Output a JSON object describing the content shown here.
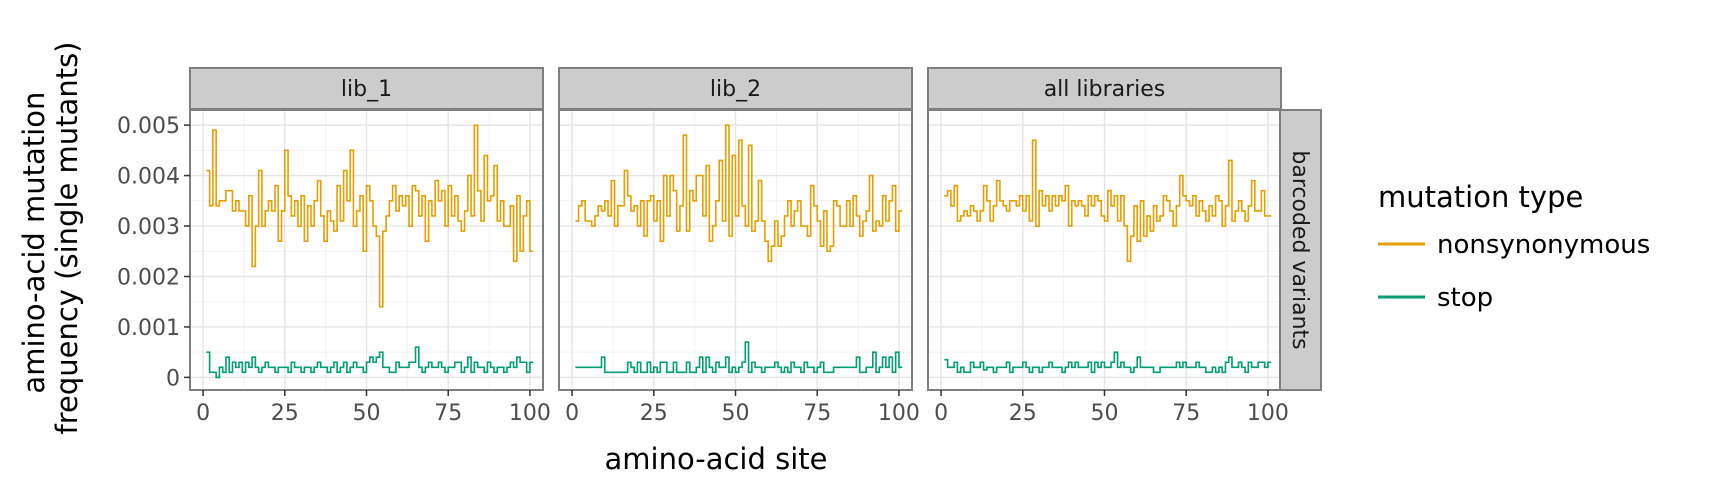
{
  "chart_data": {
    "type": "line",
    "step": true,
    "xlabel": "amino-acid site",
    "ylabel": [
      "amino-acid mutation",
      "frequency (single mutants)"
    ],
    "xlim": [
      -4,
      104
    ],
    "ylim": [
      -0.00025,
      0.0053
    ],
    "x_ticks": [
      0,
      25,
      50,
      75,
      100
    ],
    "x_tick_labels": [
      "0",
      "25",
      "50",
      "75",
      "100"
    ],
    "y_ticks": [
      0,
      0.001,
      0.002,
      0.003,
      0.004,
      0.005
    ],
    "y_tick_labels": [
      "0",
      "0.001",
      "0.002",
      "0.003",
      "0.004",
      "0.005"
    ],
    "grid": true,
    "row_strip": "barcoded variants",
    "legend": {
      "title": "mutation type",
      "position": "right",
      "entries": [
        {
          "label": "nonsynonymous",
          "color": "#E69F00"
        },
        {
          "label": "stop",
          "color": "#009E73"
        }
      ]
    },
    "panels": [
      {
        "name": "lib_1",
        "series": [
          {
            "name": "nonsynonymous",
            "color": "#E69F00",
            "x_start": 1,
            "values": [
              0.0041,
              0.0034,
              0.0049,
              0.0034,
              0.0035,
              0.0035,
              0.0037,
              0.0037,
              0.0033,
              0.0035,
              0.0033,
              0.0033,
              0.003,
              0.0036,
              0.0022,
              0.003,
              0.0041,
              0.003,
              0.0033,
              0.0035,
              0.0033,
              0.0038,
              0.0027,
              0.0033,
              0.0045,
              0.0036,
              0.0032,
              0.0035,
              0.003,
              0.0036,
              0.0027,
              0.0034,
              0.003,
              0.0035,
              0.0039,
              0.0032,
              0.0027,
              0.0033,
              0.0031,
              0.0029,
              0.0038,
              0.0031,
              0.0041,
              0.0035,
              0.0045,
              0.003,
              0.0033,
              0.0036,
              0.0025,
              0.0038,
              0.0035,
              0.003,
              0.0028,
              0.0014,
              0.0029,
              0.0032,
              0.0035,
              0.0038,
              0.0033,
              0.0036,
              0.0034,
              0.0036,
              0.003,
              0.0038,
              0.0037,
              0.0032,
              0.0036,
              0.0027,
              0.0035,
              0.0032,
              0.0039,
              0.0035,
              0.0037,
              0.003,
              0.0038,
              0.0032,
              0.0036,
              0.0031,
              0.0029,
              0.0033,
              0.004,
              0.0032,
              0.005,
              0.0037,
              0.0031,
              0.0044,
              0.0035,
              0.0036,
              0.0042,
              0.0031,
              0.0035,
              0.003,
              0.003,
              0.0034,
              0.0023,
              0.0036,
              0.0025,
              0.0032,
              0.0035,
              0.0025
            ]
          },
          {
            "name": "stop",
            "color": "#009E73",
            "x_start": 1,
            "values": [
              0.0005,
              0.0001,
              0.0001,
              0.0,
              0.0002,
              0.0001,
              0.0004,
              0.0001,
              0.0003,
              0.0002,
              0.0003,
              0.0001,
              0.0003,
              0.0002,
              0.0004,
              0.0002,
              0.0001,
              0.0002,
              0.0003,
              0.0002,
              0.0002,
              0.0001,
              0.0002,
              0.0002,
              0.0002,
              0.0001,
              0.0003,
              0.0002,
              0.0002,
              0.0001,
              0.0002,
              0.0002,
              0.0001,
              0.0002,
              0.0003,
              0.0002,
              0.0002,
              0.0001,
              0.0002,
              0.0003,
              0.0001,
              0.0002,
              0.0003,
              0.0001,
              0.0002,
              0.0003,
              0.0002,
              0.0002,
              0.0001,
              0.0003,
              0.0004,
              0.0003,
              0.0004,
              0.0005,
              0.0002,
              0.0002,
              0.0001,
              0.0001,
              0.0003,
              0.0002,
              0.0002,
              0.0002,
              0.0003,
              0.0003,
              0.0006,
              0.0002,
              0.0001,
              0.0002,
              0.0003,
              0.0002,
              0.0002,
              0.0003,
              0.0002,
              0.0001,
              0.0002,
              0.0002,
              0.0003,
              0.0003,
              0.0001,
              0.0002,
              0.0004,
              0.0001,
              0.0003,
              0.0002,
              0.0002,
              0.0001,
              0.0003,
              0.0002,
              0.0001,
              0.0002,
              0.0002,
              0.0001,
              0.0002,
              0.0003,
              0.0002,
              0.0004,
              0.0003,
              0.0003,
              0.0001,
              0.0003
            ]
          }
        ]
      },
      {
        "name": "lib_2",
        "series": [
          {
            "name": "nonsynonymous",
            "color": "#E69F00",
            "x_start": 1,
            "values": [
              0.0031,
              0.0034,
              0.0035,
              0.0031,
              0.0031,
              0.003,
              0.0032,
              0.0034,
              0.0033,
              0.0035,
              0.0032,
              0.0039,
              0.003,
              0.0034,
              0.0034,
              0.0041,
              0.0036,
              0.0033,
              0.0034,
              0.003,
              0.0035,
              0.0028,
              0.0035,
              0.0036,
              0.0031,
              0.0035,
              0.0027,
              0.004,
              0.0032,
              0.004,
              0.0037,
              0.0029,
              0.0034,
              0.0048,
              0.0029,
              0.0037,
              0.0035,
              0.004,
              0.004,
              0.0032,
              0.0042,
              0.0027,
              0.003,
              0.0035,
              0.0043,
              0.0031,
              0.005,
              0.0028,
              0.0044,
              0.0032,
              0.0047,
              0.0034,
              0.003,
              0.0046,
              0.0029,
              0.0031,
              0.0039,
              0.0031,
              0.0027,
              0.0023,
              0.0026,
              0.0031,
              0.0026,
              0.0028,
              0.0032,
              0.0035,
              0.003,
              0.0033,
              0.0035,
              0.003,
              0.003,
              0.0028,
              0.0038,
              0.0034,
              0.0031,
              0.0026,
              0.0033,
              0.0025,
              0.0026,
              0.0035,
              0.0034,
              0.003,
              0.003,
              0.0035,
              0.003,
              0.0036,
              0.0032,
              0.0028,
              0.0031,
              0.0033,
              0.004,
              0.0029,
              0.0031,
              0.003,
              0.0036,
              0.0031,
              0.0035,
              0.0038,
              0.0029,
              0.0033
            ]
          },
          {
            "name": "stop",
            "color": "#009E73",
            "x_start": 1,
            "values": [
              0.0002,
              0.0002,
              0.0002,
              0.0002,
              0.0002,
              0.0002,
              0.0002,
              0.0002,
              0.0004,
              0.0001,
              0.0001,
              0.0001,
              0.0001,
              0.0001,
              0.0001,
              0.0001,
              0.0003,
              0.0002,
              0.0001,
              0.0003,
              0.0001,
              0.0001,
              0.0003,
              0.0001,
              0.0002,
              0.0001,
              0.0003,
              0.0003,
              0.0001,
              0.0001,
              0.0003,
              0.0001,
              0.0001,
              0.0001,
              0.0003,
              0.0001,
              0.0001,
              0.0002,
              0.0004,
              0.0001,
              0.0004,
              0.0002,
              0.0001,
              0.0003,
              0.0002,
              0.0002,
              0.0004,
              0.0001,
              0.0002,
              0.0001,
              0.0002,
              0.0003,
              0.0007,
              0.0001,
              0.0003,
              0.0002,
              0.0002,
              0.0001,
              0.0002,
              0.0002,
              0.0002,
              0.0003,
              0.0002,
              0.0001,
              0.0002,
              0.0001,
              0.0003,
              0.0002,
              0.0002,
              0.0001,
              0.0003,
              0.0002,
              0.0002,
              0.0001,
              0.0002,
              0.0003,
              0.0001,
              0.0001,
              0.0001,
              0.0002,
              0.0002,
              0.0002,
              0.0002,
              0.0002,
              0.0002,
              0.0002,
              0.0004,
              0.0001,
              0.0001,
              0.0002,
              0.0002,
              0.0005,
              0.0001,
              0.0002,
              0.0004,
              0.0002,
              0.0004,
              0.0001,
              0.0005,
              0.0002
            ]
          }
        ]
      },
      {
        "name": "all libraries",
        "series": [
          {
            "name": "nonsynonymous",
            "color": "#E69F00",
            "x_start": 1,
            "values": [
              0.0036,
              0.0037,
              0.0034,
              0.0038,
              0.0031,
              0.0032,
              0.0033,
              0.0032,
              0.0034,
              0.0033,
              0.0031,
              0.0033,
              0.0038,
              0.0035,
              0.0031,
              0.0034,
              0.0039,
              0.0035,
              0.0034,
              0.0033,
              0.0035,
              0.0035,
              0.0034,
              0.0036,
              0.0033,
              0.0036,
              0.0031,
              0.0047,
              0.003,
              0.0037,
              0.0034,
              0.0036,
              0.0033,
              0.0036,
              0.0034,
              0.0036,
              0.0035,
              0.0038,
              0.003,
              0.0035,
              0.0034,
              0.0035,
              0.0034,
              0.0032,
              0.0036,
              0.0034,
              0.0036,
              0.0035,
              0.0032,
              0.0031,
              0.0037,
              0.0034,
              0.0036,
              0.0031,
              0.0036,
              0.003,
              0.0023,
              0.0028,
              0.0034,
              0.0027,
              0.0035,
              0.0028,
              0.0032,
              0.0029,
              0.0034,
              0.0031,
              0.0032,
              0.0036,
              0.0035,
              0.0033,
              0.003,
              0.0034,
              0.004,
              0.0036,
              0.0035,
              0.0034,
              0.0036,
              0.0032,
              0.0035,
              0.0033,
              0.0031,
              0.0034,
              0.0032,
              0.0036,
              0.0035,
              0.003,
              0.0034,
              0.0043,
              0.0031,
              0.0033,
              0.0035,
              0.0033,
              0.0031,
              0.0034,
              0.0039,
              0.0033,
              0.0033,
              0.0037,
              0.0032,
              0.0032
            ]
          },
          {
            "name": "stop",
            "color": "#009E73",
            "x_start": 1,
            "values": [
              0.00035,
              0.0002,
              0.0002,
              0.0003,
              0.0001,
              0.0002,
              0.0001,
              0.0001,
              0.0003,
              0.0002,
              0.0002,
              0.0003,
              0.00015,
              0.0002,
              0.0002,
              0.0001,
              0.0002,
              0.0002,
              0.0002,
              0.0003,
              0.0001,
              0.0002,
              0.0002,
              0.0002,
              0.0003,
              0.0002,
              0.0001,
              0.0002,
              0.0002,
              0.0001,
              0.0002,
              0.0002,
              0.0003,
              0.0002,
              0.0002,
              0.0002,
              0.0001,
              0.0002,
              0.0003,
              0.0002,
              0.0003,
              0.0002,
              0.0002,
              0.0002,
              0.0003,
              0.0001,
              0.0003,
              0.0002,
              0.0003,
              0.0002,
              0.0002,
              0.0003,
              0.0005,
              0.0002,
              0.0003,
              0.0002,
              0.0002,
              0.0001,
              0.0002,
              0.0004,
              0.0002,
              0.0002,
              0.0002,
              0.0002,
              0.0001,
              0.0001,
              0.0002,
              0.0002,
              0.0002,
              0.0002,
              0.0002,
              0.0003,
              0.0002,
              0.0003,
              0.0002,
              0.0002,
              0.0002,
              0.0003,
              0.0002,
              0.0002,
              0.0001,
              0.0001,
              0.0002,
              0.0001,
              0.0002,
              0.0001,
              0.0003,
              0.0004,
              0.0002,
              0.0002,
              0.0003,
              0.0002,
              0.0001,
              0.0003,
              0.0002,
              0.0002,
              0.0003,
              0.0003,
              0.0002,
              0.0003
            ]
          }
        ]
      }
    ]
  }
}
